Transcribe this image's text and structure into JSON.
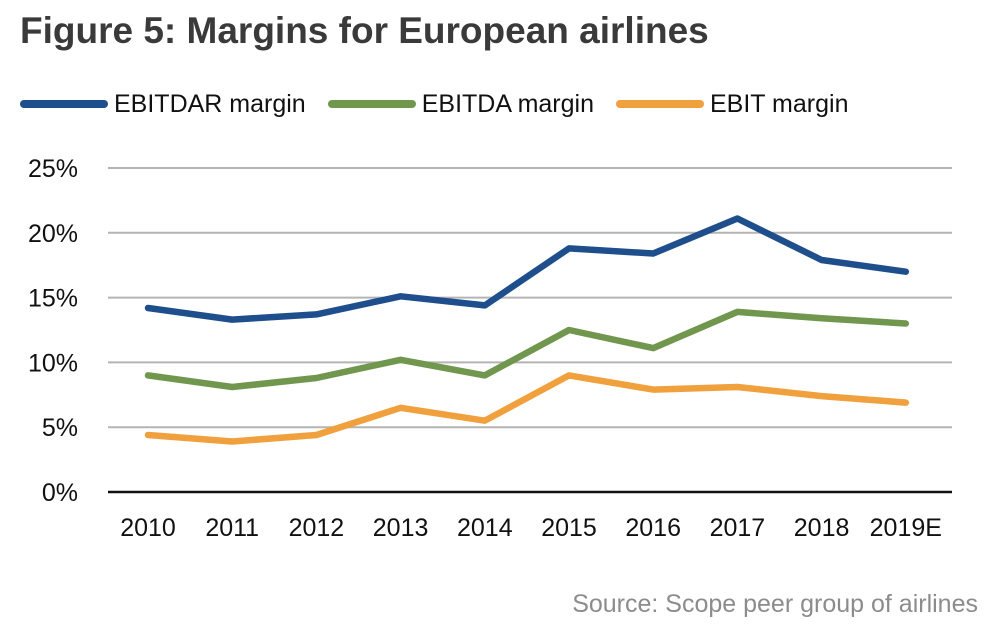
{
  "chart_data": {
    "type": "line",
    "title": "Figure 5: Margins for European airlines",
    "source": "Source: Scope peer group of airlines",
    "xlabel": "",
    "ylabel": "",
    "categories": [
      "2010",
      "2011",
      "2012",
      "2013",
      "2014",
      "2015",
      "2016",
      "2017",
      "2018",
      "2019E"
    ],
    "y_ticks": [
      "0%",
      "5%",
      "10%",
      "15%",
      "20%",
      "25%"
    ],
    "ylim": [
      0,
      25
    ],
    "grid": true,
    "legend_position": "top",
    "series": [
      {
        "name": "EBITDAR margin",
        "color": "#1f4e8c",
        "values": [
          14.2,
          13.3,
          13.7,
          15.1,
          14.4,
          18.8,
          18.4,
          21.1,
          17.9,
          17.0
        ]
      },
      {
        "name": "EBITDA margin",
        "color": "#71964e",
        "values": [
          9.0,
          8.1,
          8.8,
          10.2,
          9.0,
          12.5,
          11.1,
          13.9,
          13.4,
          13.0
        ]
      },
      {
        "name": "EBIT margin",
        "color": "#f0a03c",
        "values": [
          4.4,
          3.9,
          4.4,
          6.5,
          5.5,
          9.0,
          7.9,
          8.1,
          7.4,
          6.9
        ]
      }
    ]
  }
}
